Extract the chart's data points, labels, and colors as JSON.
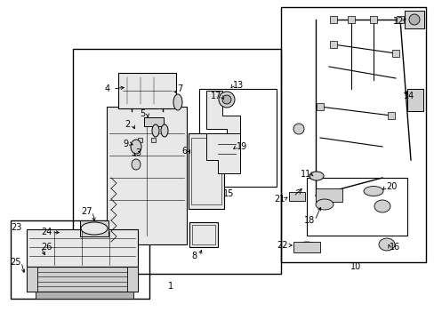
{
  "bg_color": "#ffffff",
  "lc": "#000000",
  "gray1": "#e8e8e8",
  "gray2": "#d0d0d0",
  "gray3": "#b0b0b0",
  "fw": 4.89,
  "fh": 3.6,
  "dpi": 100,
  "fs": 7.0
}
